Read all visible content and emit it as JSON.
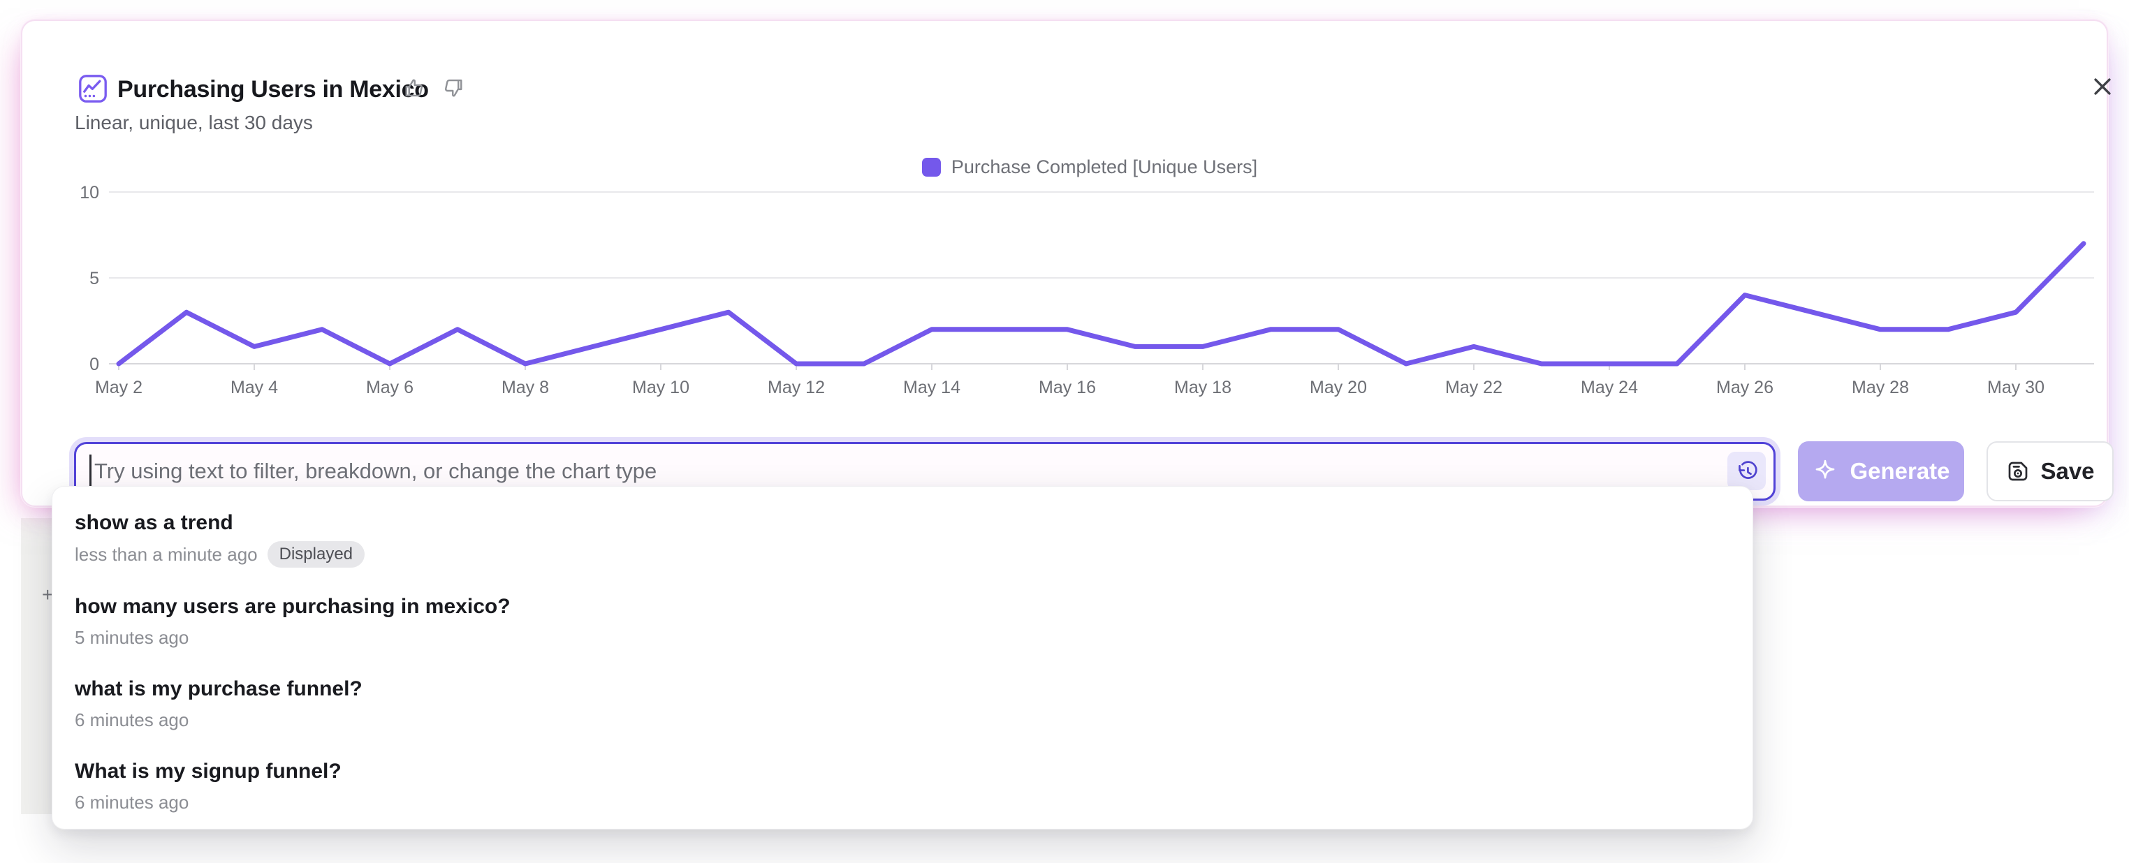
{
  "panel": {
    "title": "Purchasing Users in Mexico",
    "subtitle": "Linear, unique, last 30 days"
  },
  "legend": {
    "label": "Purchase Completed [Unique Users]",
    "swatch_color": "#7458eb"
  },
  "chart_data": {
    "type": "line",
    "title": "Purchasing Users in Mexico",
    "xlabel": "",
    "ylabel": "",
    "x": [
      "May 2",
      "May 3",
      "May 4",
      "May 5",
      "May 6",
      "May 7",
      "May 8",
      "May 9",
      "May 10",
      "May 11",
      "May 12",
      "May 13",
      "May 14",
      "May 15",
      "May 16",
      "May 17",
      "May 18",
      "May 19",
      "May 20",
      "May 21",
      "May 22",
      "May 23",
      "May 24",
      "May 25",
      "May 26",
      "May 27",
      "May 28",
      "May 29",
      "May 30",
      "May 31"
    ],
    "x_tick_labels": [
      "May 2",
      "May 4",
      "May 6",
      "May 8",
      "May 10",
      "May 12",
      "May 14",
      "May 16",
      "May 18",
      "May 20",
      "May 22",
      "May 24",
      "May 26",
      "May 28",
      "May 30"
    ],
    "series": [
      {
        "name": "Purchase Completed [Unique Users]",
        "color": "#7458eb",
        "values": [
          0,
          3,
          1,
          2,
          0,
          2,
          0,
          1,
          2,
          3,
          0,
          0,
          2,
          2,
          2,
          1,
          1,
          2,
          2,
          0,
          1,
          0,
          0,
          0,
          4,
          3,
          2,
          2,
          3,
          7
        ]
      }
    ],
    "ylim": [
      0,
      10
    ],
    "y_ticks": [
      0,
      5,
      10
    ],
    "grid": true,
    "legend_position": "top-center"
  },
  "prompt_bar": {
    "placeholder": "Try using text to filter, breakdown, or change the chart type",
    "history_icon": "history-icon",
    "generate_button": {
      "label": "Generate",
      "icon": "sparkle-icon",
      "disabled": true
    },
    "save_button": {
      "label": "Save",
      "icon": "save-icon"
    }
  },
  "history_dropdown": {
    "items": [
      {
        "query": "show as a trend",
        "time": "less than a minute ago",
        "badge": "Displayed"
      },
      {
        "query": "how many users are purchasing in mexico?",
        "time": "5 minutes ago"
      },
      {
        "query": "what is my purchase funnel?",
        "time": "6 minutes ago"
      },
      {
        "query": "What is my signup funnel?",
        "time": "6 minutes ago"
      }
    ]
  },
  "background": {
    "plus_glyph": "+"
  },
  "colors": {
    "accent_purple": "#7458eb",
    "input_border": "#5243d8",
    "generate_bg": "#b5a9f0",
    "panel_glow_pink": "#f0c9e6",
    "gridline": "#e8e8eb",
    "axis_text": "#6d6f75"
  }
}
